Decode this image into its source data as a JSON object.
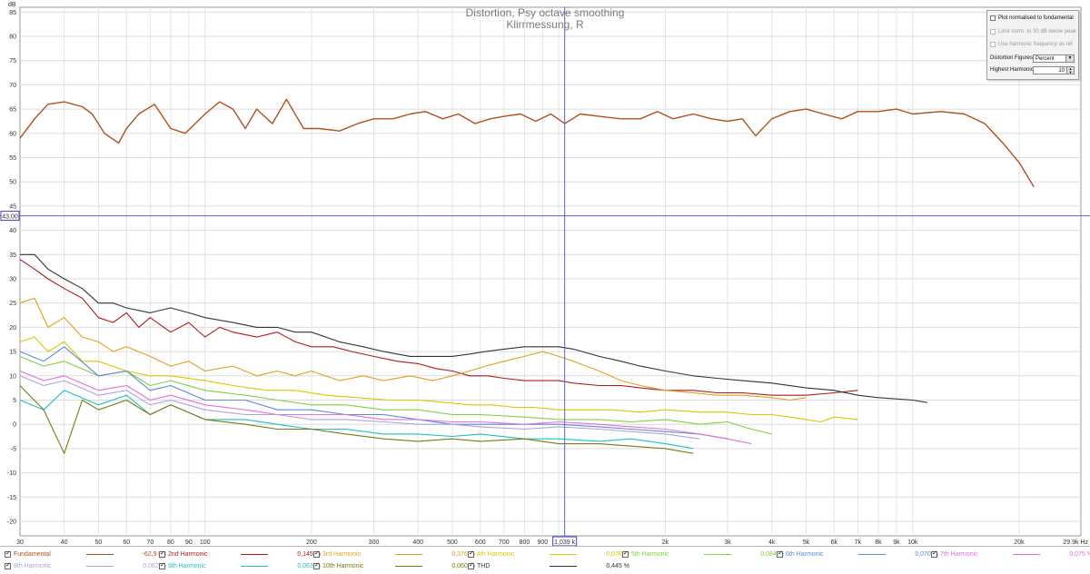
{
  "chart_data": {
    "type": "line",
    "title": "Distortion, Psy octave smoothing",
    "subtitle": "Klirrmessung, R",
    "y_unit": "dB",
    "x_unit": "Hz",
    "xscale": "log",
    "xlim": [
      30,
      29900
    ],
    "ylim": [
      -23,
      86
    ],
    "y_ticks": [
      -20,
      -15,
      -10,
      -5,
      0,
      5,
      10,
      15,
      20,
      25,
      30,
      35,
      40,
      45,
      50,
      55,
      60,
      65,
      70,
      75,
      80,
      85
    ],
    "x_ticks": [
      {
        "v": 30,
        "label": "30"
      },
      {
        "v": 40,
        "label": "40"
      },
      {
        "v": 50,
        "label": "50"
      },
      {
        "v": 60,
        "label": "60"
      },
      {
        "v": 70,
        "label": "70"
      },
      {
        "v": 80,
        "label": "80"
      },
      {
        "v": 90,
        "label": "90"
      },
      {
        "v": 100,
        "label": "100"
      },
      {
        "v": 200,
        "label": "200"
      },
      {
        "v": 300,
        "label": "300"
      },
      {
        "v": 400,
        "label": "400"
      },
      {
        "v": 500,
        "label": "500"
      },
      {
        "v": 600,
        "label": "600"
      },
      {
        "v": 700,
        "label": "700"
      },
      {
        "v": 800,
        "label": "800"
      },
      {
        "v": 900,
        "label": "900"
      },
      {
        "v": 2000,
        "label": "2k"
      },
      {
        "v": 3000,
        "label": "3k"
      },
      {
        "v": 4000,
        "label": "4k"
      },
      {
        "v": 5000,
        "label": "5k"
      },
      {
        "v": 6000,
        "label": "6k"
      },
      {
        "v": 7000,
        "label": "7k"
      },
      {
        "v": 8000,
        "label": "8k"
      },
      {
        "v": 9000,
        "label": "9k"
      },
      {
        "v": 10000,
        "label": "10k"
      },
      {
        "v": 20000,
        "label": "20k"
      },
      {
        "v": 29900,
        "label": "29.9k Hz"
      }
    ],
    "cursor": {
      "x": 1039,
      "x_label": "1,039 k",
      "y": 43.0,
      "y_label": "43,00"
    },
    "grid": true,
    "legend_position": "bottom",
    "series": [
      {
        "name": "Fundamental",
        "value": "-62,9 dB",
        "color": "#b0521c",
        "x": [
          30,
          33,
          36,
          40,
          45,
          48,
          52,
          57,
          60,
          65,
          72,
          80,
          88,
          100,
          110,
          120,
          130,
          140,
          155,
          170,
          190,
          210,
          240,
          270,
          300,
          340,
          380,
          420,
          470,
          520,
          580,
          640,
          700,
          780,
          860,
          950,
          1039,
          1150,
          1300,
          1500,
          1700,
          1900,
          2100,
          2400,
          2700,
          3000,
          3300,
          3600,
          4000,
          4500,
          5000,
          5600,
          6300,
          7000,
          8000,
          9000,
          10000,
          12000,
          14000,
          16000,
          18000,
          20000,
          22000
        ],
        "y": [
          59,
          63,
          66,
          66.5,
          65.5,
          64,
          60,
          58,
          61,
          64,
          66,
          61,
          60,
          64,
          66.5,
          65,
          61,
          65,
          62,
          67,
          61,
          61,
          60.5,
          62,
          63,
          63,
          64,
          64.5,
          63,
          64,
          62,
          63,
          63.5,
          64,
          62.5,
          64,
          62,
          64,
          63.5,
          63,
          63,
          64.5,
          63,
          64,
          63,
          62.5,
          63,
          59.5,
          63,
          64.5,
          65,
          64,
          63,
          64.5,
          64.5,
          65,
          64,
          64.5,
          64,
          62,
          58,
          54,
          49
        ]
      },
      {
        "name": "2nd Harmonic",
        "value": "0,145 %",
        "color": "#b01a1a",
        "x": [
          30,
          33,
          36,
          40,
          45,
          50,
          55,
          60,
          65,
          70,
          80,
          90,
          100,
          110,
          120,
          140,
          160,
          180,
          200,
          230,
          260,
          300,
          350,
          400,
          450,
          500,
          560,
          630,
          700,
          800,
          900,
          1000,
          1100,
          1300,
          1500,
          1700,
          2000,
          2400,
          2800,
          3300,
          4000,
          5000,
          6000,
          7000
        ],
        "y": [
          34,
          32,
          30,
          28,
          26,
          22,
          21,
          23,
          20,
          22,
          19,
          21,
          18,
          20,
          19,
          18,
          19,
          17,
          16,
          16,
          15,
          14,
          13,
          12.5,
          11.5,
          11,
          10,
          10,
          9.5,
          9,
          9,
          9,
          8.5,
          8,
          8,
          7.5,
          7,
          7,
          6.5,
          6.5,
          6,
          6,
          6.5,
          7
        ]
      },
      {
        "name": "3rd Harmonic",
        "value": "0,376 %",
        "color": "#e0a020",
        "x": [
          30,
          33,
          36,
          40,
          45,
          50,
          55,
          60,
          70,
          80,
          90,
          100,
          120,
          140,
          160,
          180,
          200,
          240,
          280,
          320,
          380,
          440,
          500,
          560,
          620,
          700,
          800,
          900,
          1000,
          1100,
          1300,
          1500,
          1700,
          2000,
          2400,
          2800,
          3300,
          4000,
          4500,
          5000
        ],
        "y": [
          25,
          26,
          20,
          22,
          18,
          17,
          15,
          16,
          14,
          12,
          13,
          11,
          12,
          10,
          11,
          10,
          11,
          9,
          10,
          9,
          10,
          9,
          10,
          11,
          12,
          13,
          14,
          15,
          14,
          13,
          11,
          9,
          8,
          7,
          6.5,
          6,
          6,
          5.5,
          5,
          5.5
        ]
      },
      {
        "name": "4th Harmonic",
        "value": "0,078 %",
        "color": "#d8c800",
        "x": [
          30,
          33,
          36,
          40,
          45,
          50,
          60,
          70,
          80,
          100,
          120,
          150,
          180,
          220,
          270,
          330,
          400,
          480,
          560,
          650,
          750,
          850,
          1000,
          1200,
          1400,
          1700,
          2000,
          2500,
          3000,
          3500,
          4000,
          4500,
          5000,
          5500,
          6000,
          7000
        ],
        "y": [
          17,
          18,
          15,
          17,
          13,
          13,
          11,
          10,
          10,
          9,
          8,
          7,
          7,
          6,
          5.5,
          5,
          5,
          4.5,
          4,
          4,
          3.5,
          3.5,
          3,
          3,
          3,
          2.5,
          3,
          2.5,
          2.5,
          2,
          2,
          1.5,
          1,
          0.5,
          1.5,
          1
        ]
      },
      {
        "name": "5th Harmonic",
        "value": "0,084 %",
        "color": "#80d040",
        "x": [
          30,
          35,
          40,
          50,
          60,
          70,
          80,
          100,
          130,
          160,
          200,
          250,
          320,
          400,
          500,
          600,
          800,
          1000,
          1300,
          1600,
          2000,
          2500,
          3000,
          3500,
          4000
        ],
        "y": [
          14,
          12,
          13,
          10,
          11,
          8,
          9,
          7,
          6,
          5,
          4,
          4,
          3,
          3,
          2,
          2,
          1.5,
          1,
          1,
          0.5,
          1,
          0,
          0.5,
          -1,
          -2
        ]
      },
      {
        "name": "6th Harmonic",
        "value": "0,070 %",
        "color": "#5a8ad6",
        "x": [
          30,
          35,
          40,
          50,
          60,
          70,
          80,
          100,
          130,
          160,
          200,
          250,
          320,
          400,
          500,
          600,
          800,
          1000,
          1300,
          1600,
          2000,
          2500,
          3000
        ],
        "y": [
          15,
          13,
          16,
          10,
          11,
          7,
          8,
          5,
          5,
          3,
          3,
          2,
          2,
          1,
          0,
          0,
          0,
          0,
          -0.5,
          -1,
          -1.5,
          -2,
          -3
        ]
      },
      {
        "name": "7th Harmonic",
        "value": "0,075 %",
        "color": "#e070e0",
        "x": [
          30,
          35,
          40,
          50,
          60,
          70,
          80,
          100,
          130,
          160,
          200,
          250,
          320,
          400,
          500,
          600,
          800,
          1000,
          1300,
          1600,
          2000,
          2500,
          3000,
          3500
        ],
        "y": [
          11,
          9,
          10,
          7,
          8,
          5,
          6,
          4,
          3,
          2,
          2,
          2,
          1,
          1,
          0.5,
          0.5,
          0,
          0.5,
          0,
          -0.5,
          -1,
          -2,
          -3,
          -4
        ]
      },
      {
        "name": "8th Harmonic",
        "value": "0,062 %",
        "color": "#b0a0e0",
        "x": [
          30,
          35,
          40,
          50,
          60,
          70,
          80,
          100,
          130,
          160,
          200,
          250,
          320,
          400,
          500,
          600,
          800,
          1000,
          1300,
          1600,
          2000,
          2500
        ],
        "y": [
          10,
          8,
          9,
          6,
          7,
          4,
          5,
          3,
          2,
          2,
          1,
          1,
          0.5,
          0,
          0,
          -0.5,
          -1,
          -0.5,
          -1,
          -1.5,
          -2,
          -3
        ]
      },
      {
        "name": "9th Harmonic",
        "value": "0,063 %",
        "color": "#20c0c0",
        "x": [
          30,
          35,
          40,
          50,
          60,
          70,
          80,
          100,
          130,
          160,
          200,
          250,
          320,
          400,
          500,
          600,
          800,
          1000,
          1300,
          1600,
          2000,
          2400
        ],
        "y": [
          5,
          3,
          7,
          4,
          6,
          2,
          4,
          1,
          1,
          0,
          -1,
          -1,
          -2,
          -2,
          -2.5,
          -2,
          -3,
          -3,
          -3.5,
          -3,
          -4,
          -5
        ]
      },
      {
        "name": "10th Harmonic",
        "value": "0,060 %",
        "color": "#7a7a10",
        "x": [
          30,
          35,
          40,
          45,
          50,
          60,
          70,
          80,
          100,
          130,
          160,
          200,
          250,
          320,
          400,
          500,
          600,
          800,
          1000,
          1300,
          1600,
          2000,
          2400
        ],
        "y": [
          8,
          3,
          -6,
          5,
          3,
          5,
          2,
          4,
          1,
          0,
          -1,
          -1,
          -2,
          -3,
          -3.5,
          -3,
          -3.5,
          -3,
          -4,
          -4,
          -4.5,
          -5,
          -6
        ]
      },
      {
        "name": "THD",
        "value": "0,445 %",
        "color": "#333333",
        "x": [
          30,
          33,
          36,
          40,
          45,
          50,
          55,
          60,
          70,
          80,
          90,
          100,
          120,
          140,
          160,
          180,
          200,
          240,
          280,
          320,
          380,
          440,
          500,
          560,
          620,
          700,
          800,
          900,
          1000,
          1100,
          1300,
          1500,
          1700,
          2000,
          2400,
          2800,
          3300,
          4000,
          5000,
          6000,
          7000,
          8000,
          10000,
          11000
        ],
        "y": [
          35,
          35,
          32,
          30,
          28,
          25,
          25,
          24,
          23,
          24,
          23,
          22,
          21,
          20,
          20,
          19,
          19,
          17,
          16,
          15,
          14,
          14,
          14,
          14.5,
          15,
          15.5,
          16,
          16,
          16,
          15.5,
          14,
          13,
          12,
          11,
          10,
          9.5,
          9,
          8.5,
          7.5,
          7,
          6,
          5.5,
          5,
          4.5
        ]
      }
    ]
  },
  "controls": {
    "plot_normalised_label": "Plot normalised to fundamental",
    "limit_label": "Limit norm. to 30 dB below peak",
    "harmonic_freq_label": "Use harmonic frequency as ref",
    "distortion_figures_label": "Distortion Figures:",
    "distortion_figures_value": "Percent",
    "highest_harmonic_label": "Highest Harmonic:",
    "highest_harmonic_value": "10"
  }
}
